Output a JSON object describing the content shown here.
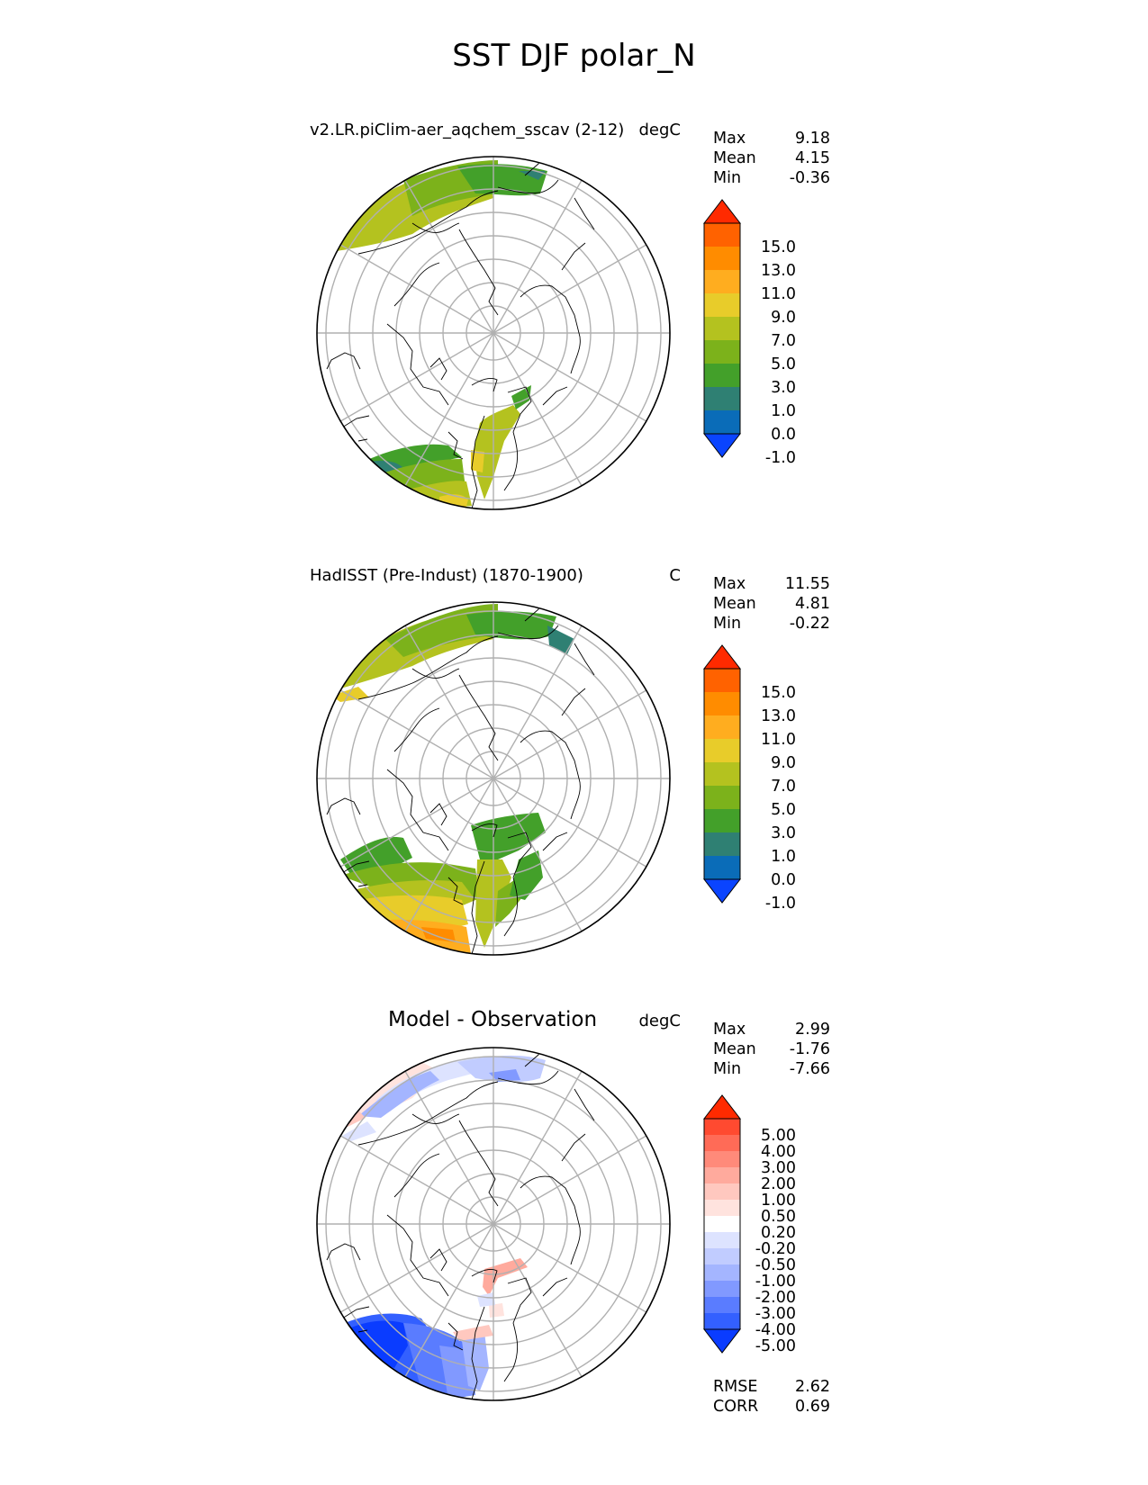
{
  "figure": {
    "title": "SST DJF polar_N"
  },
  "panels": [
    {
      "id": "model",
      "title": "v2.LR.piClim-aer_aqchem_sscav (2-12)",
      "units": "degC",
      "stats": {
        "max_label": "Max",
        "max": "9.18",
        "mean_label": "Mean",
        "mean": "4.15",
        "min_label": "Min",
        "min": "-0.36"
      },
      "colorbar": {
        "labels": [
          "15.0",
          "13.0",
          "11.0",
          "9.0",
          "7.0",
          "5.0",
          "3.0",
          "1.0",
          "0.0",
          "-1.0"
        ],
        "colors": [
          "#ff2a00",
          "#ff6200",
          "#ff8c00",
          "#ffad1f",
          "#e8cc2a",
          "#b4c21f",
          "#7cb21b",
          "#43a02a",
          "#2f8073",
          "#0a6cb8",
          "#0a44ff"
        ]
      }
    },
    {
      "id": "obs",
      "title": "HadISST (Pre-Indust) (1870-1900)",
      "units": "C",
      "stats": {
        "max_label": "Max",
        "max": "11.55",
        "mean_label": "Mean",
        "mean": "4.81",
        "min_label": "Min",
        "min": "-0.22"
      },
      "colorbar": {
        "labels": [
          "15.0",
          "13.0",
          "11.0",
          "9.0",
          "7.0",
          "5.0",
          "3.0",
          "1.0",
          "0.0",
          "-1.0"
        ],
        "colors": [
          "#ff2a00",
          "#ff6200",
          "#ff8c00",
          "#ffad1f",
          "#e8cc2a",
          "#b4c21f",
          "#7cb21b",
          "#43a02a",
          "#2f8073",
          "#0a6cb8",
          "#0a44ff"
        ]
      }
    },
    {
      "id": "diff",
      "title": "Model - Observation",
      "units": "degC",
      "stats": {
        "max_label": "Max",
        "max": "2.99",
        "mean_label": "Mean",
        "mean": "-1.76",
        "min_label": "Min",
        "min": "-7.66"
      },
      "colorbar": {
        "labels": [
          "5.00",
          "4.00",
          "3.00",
          "2.00",
          "1.00",
          "0.50",
          "0.20",
          "-0.20",
          "-0.50",
          "-1.00",
          "-2.00",
          "-3.00",
          "-4.00",
          "-5.00"
        ],
        "colors": [
          "#ff2a00",
          "#ff4a30",
          "#ff6b57",
          "#ff8a7a",
          "#ffaa9d",
          "#ffc8bf",
          "#ffe3de",
          "#ffffff",
          "#dde3ff",
          "#c1ccff",
          "#a4b5ff",
          "#8199ff",
          "#5a7cff",
          "#3360ff",
          "#0a3cff"
        ]
      },
      "metrics": {
        "rmse_label": "RMSE",
        "rmse": "2.62",
        "corr_label": "CORR",
        "corr": "0.69"
      }
    }
  ]
}
